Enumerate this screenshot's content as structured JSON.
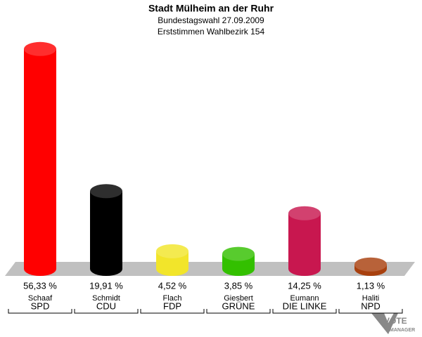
{
  "chart_data": {
    "type": "bar",
    "title": "Stadt Mülheim an der Ruhr",
    "subtitle": [
      "Bundestagswahl 27.09.2009",
      "Erststimmen Wahlbezirk 154"
    ],
    "categories": [
      "Schaaf",
      "Schmidt",
      "Flach",
      "Giesbert",
      "Eumann",
      "Haliti"
    ],
    "parties": [
      "SPD",
      "CDU",
      "FDP",
      "GRÜNE",
      "DIE LINKE",
      "NPD"
    ],
    "values": [
      56.33,
      19.91,
      4.52,
      3.85,
      14.25,
      1.13
    ],
    "value_labels": [
      "56,33 %",
      "19,91 %",
      "4,52 %",
      "3,85 %",
      "14,25 %",
      "1,13 %"
    ],
    "colors": [
      "#ff0000",
      "#000000",
      "#f2e52a",
      "#33c000",
      "#c8174f",
      "#a8400e"
    ]
  },
  "logo": [
    "VOTE",
    "MANAGER"
  ]
}
